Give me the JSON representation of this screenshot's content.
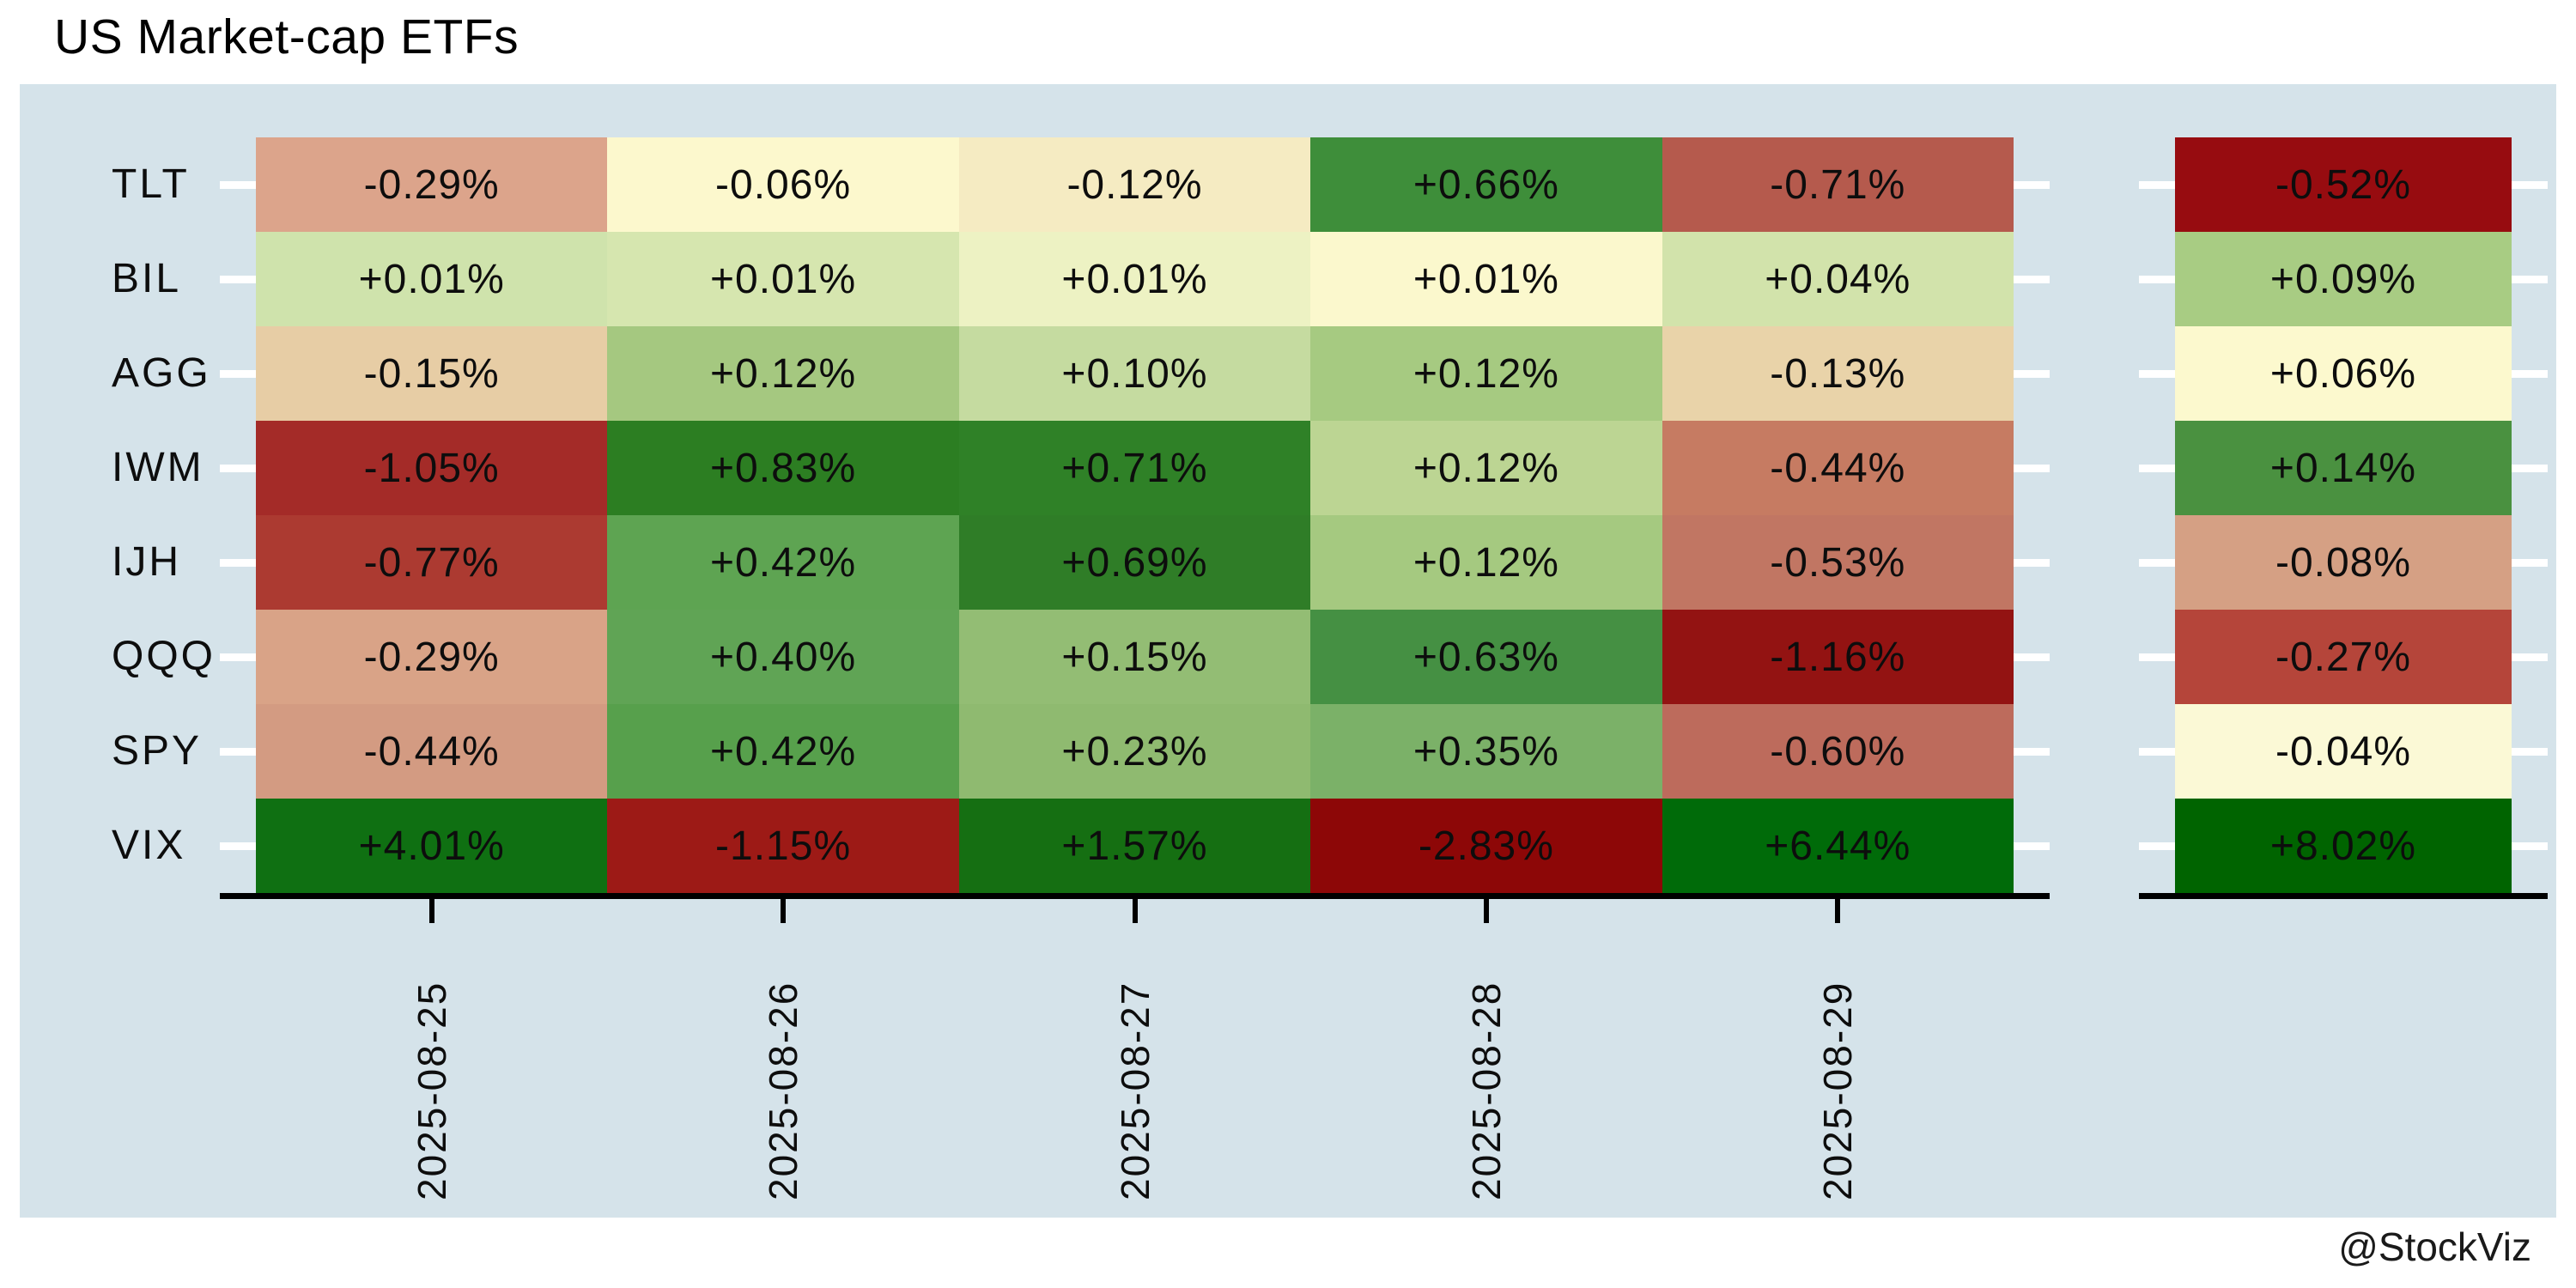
{
  "title": "US Market-cap ETFs",
  "watermark": "@StockViz",
  "colors": {
    "page_bg": "#ffffff",
    "panel_bg": "#d5e3ea",
    "axis": "#000000",
    "row_tick_dash": "#ffffff",
    "text": "#0d0d0d"
  },
  "chart_data": {
    "type": "heatmap",
    "title": "US Market-cap ETFs",
    "xlabel": "",
    "ylabel": "",
    "legend": false,
    "grid": false,
    "columns": [
      "2025-08-25",
      "2025-08-26",
      "2025-08-27",
      "2025-08-28",
      "2025-08-29"
    ],
    "row_order_top_to_bottom": [
      "TLT",
      "BIL",
      "AGG",
      "IWM",
      "IJH",
      "QQQ",
      "SPY",
      "VIX"
    ],
    "rows": [
      {
        "ticker": "TLT",
        "labels": [
          "-0.29%",
          "-0.06%",
          "-0.12%",
          "+0.66%",
          "-0.71%"
        ],
        "values": [
          -0.29,
          -0.06,
          -0.12,
          0.66,
          -0.71
        ],
        "colors": [
          "#dca48b",
          "#fcf8cd",
          "#f5ebc2",
          "#3e8e3a",
          "#b55a4d"
        ],
        "summary_label": "-0.52%",
        "summary_value": -0.52,
        "summary_color": "#970c10"
      },
      {
        "ticker": "BIL",
        "labels": [
          "+0.01%",
          "+0.01%",
          "+0.01%",
          "+0.01%",
          "+0.04%"
        ],
        "values": [
          0.01,
          0.01,
          0.01,
          0.01,
          0.04
        ],
        "colors": [
          "#cfe3ac",
          "#d6e6af",
          "#edf2c3",
          "#fbf8cd",
          "#d2e3ab"
        ],
        "summary_label": "+0.09%",
        "summary_value": 0.09,
        "summary_color": "#a8cc83"
      },
      {
        "ticker": "AGG",
        "labels": [
          "-0.15%",
          "+0.12%",
          "+0.10%",
          "+0.12%",
          "-0.13%"
        ],
        "values": [
          -0.15,
          0.12,
          0.1,
          0.12,
          -0.13
        ],
        "colors": [
          "#e7cda5",
          "#a5c880",
          "#c5dba0",
          "#a6ca81",
          "#e9d3a9"
        ],
        "summary_label": "+0.06%",
        "summary_value": 0.06,
        "summary_color": "#fcf9ce"
      },
      {
        "ticker": "IWM",
        "labels": [
          "-1.05%",
          "+0.83%",
          "+0.71%",
          "+0.12%",
          "-0.44%"
        ],
        "values": [
          -1.05,
          0.83,
          0.71,
          0.12,
          -0.44
        ],
        "colors": [
          "#a42b28",
          "#2c7e22",
          "#2f8127",
          "#bcd593",
          "#c67b62"
        ],
        "summary_label": "+0.14%",
        "summary_value": 0.14,
        "summary_color": "#4a9140"
      },
      {
        "ticker": "IJH",
        "labels": [
          "-0.77%",
          "+0.42%",
          "+0.69%",
          "+0.12%",
          "-0.53%"
        ],
        "values": [
          -0.77,
          0.42,
          0.69,
          0.12,
          -0.53
        ],
        "colors": [
          "#ac3a31",
          "#5ea452",
          "#2f7d27",
          "#a5c980",
          "#c17663"
        ],
        "summary_label": "-0.08%",
        "summary_value": -0.08,
        "summary_color": "#d5a084"
      },
      {
        "ticker": "QQQ",
        "labels": [
          "-0.29%",
          "+0.40%",
          "+0.15%",
          "+0.63%",
          "-1.16%"
        ],
        "values": [
          -0.29,
          0.4,
          0.15,
          0.63,
          -1.16
        ],
        "colors": [
          "#d9a387",
          "#60a455",
          "#93bd74",
          "#459043",
          "#931312"
        ],
        "summary_label": "-0.27%",
        "summary_value": -0.27,
        "summary_color": "#b5453a"
      },
      {
        "ticker": "SPY",
        "labels": [
          "-0.44%",
          "+0.42%",
          "+0.23%",
          "+0.35%",
          "-0.60%"
        ],
        "values": [
          -0.44,
          0.42,
          0.23,
          0.35,
          -0.6
        ],
        "colors": [
          "#d39b82",
          "#57a04c",
          "#8fba70",
          "#7bb168",
          "#bd6b5c"
        ],
        "summary_label": "-0.04%",
        "summary_value": -0.04,
        "summary_color": "#fbf9d6"
      },
      {
        "ticker": "VIX",
        "labels": [
          "+4.01%",
          "-1.15%",
          "+1.57%",
          "-2.83%",
          "+6.44%"
        ],
        "values": [
          4.01,
          -1.15,
          1.57,
          -2.83,
          6.44
        ],
        "colors": [
          "#0f7012",
          "#9d1a16",
          "#156f12",
          "#8d0707",
          "#006b09"
        ],
        "summary_label": "+8.02%",
        "summary_value": 8.02,
        "summary_color": "#006400"
      }
    ]
  }
}
